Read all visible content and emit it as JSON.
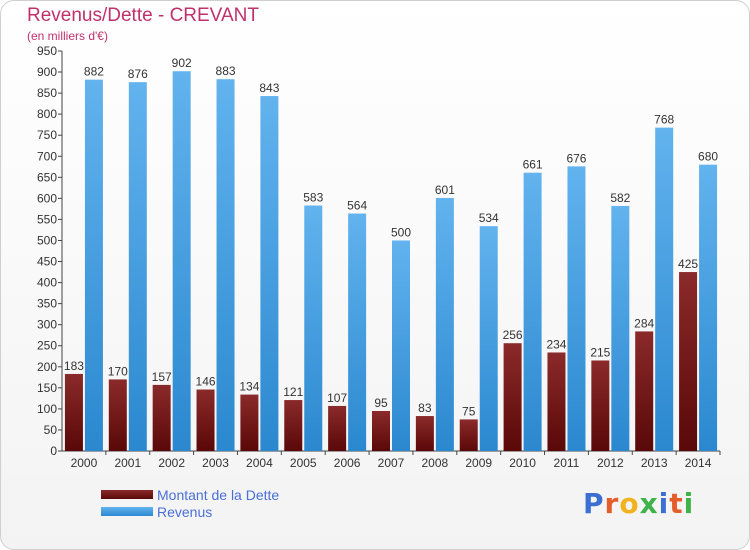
{
  "title": "Revenus/Dette - CREVANT",
  "subtitle": "(en milliers d'€)",
  "logo": {
    "letters": [
      "P",
      "r",
      "o",
      "x",
      "i",
      "t",
      "i"
    ],
    "colors": [
      "#3b6fd1",
      "#e45d2b",
      "#f1b21d",
      "#3fb34a",
      "#3b6fd1",
      "#e45d2b",
      "#3fb34a"
    ]
  },
  "colors": {
    "dette_top": "#8b2a2a",
    "dette_bottom": "#5a0808",
    "revenus_top": "#62b3ee",
    "revenus_bottom": "#2b88cf",
    "axis": "#444444",
    "grid": "#d8d8d8"
  },
  "chart_data": {
    "type": "bar",
    "categories": [
      "2000",
      "2001",
      "2002",
      "2003",
      "2004",
      "2005",
      "2006",
      "2007",
      "2008",
      "2009",
      "2010",
      "2011",
      "2012",
      "2013",
      "2014"
    ],
    "series": [
      {
        "name": "Montant de la Dette",
        "values": [
          183,
          170,
          157,
          146,
          134,
          121,
          107,
          95,
          83,
          75,
          256,
          234,
          215,
          284,
          425
        ]
      },
      {
        "name": "Revenus",
        "values": [
          882,
          876,
          902,
          883,
          843,
          583,
          564,
          500,
          601,
          534,
          661,
          676,
          582,
          768,
          680
        ]
      }
    ],
    "yticks": [
      0,
      50,
      100,
      150,
      200,
      250,
      300,
      350,
      400,
      450,
      500,
      550,
      600,
      650,
      700,
      750,
      800,
      850,
      900,
      950
    ],
    "ylim": [
      0,
      950
    ],
    "grid": false,
    "legend_position": "bottom-left"
  }
}
